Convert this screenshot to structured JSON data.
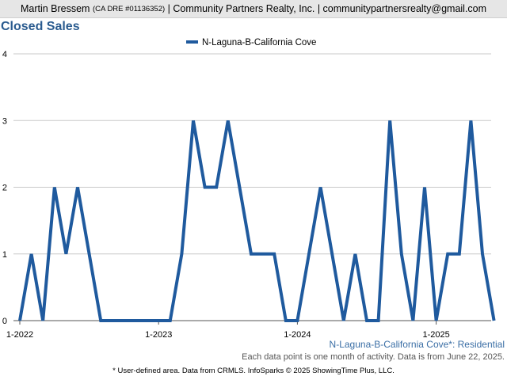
{
  "header": {
    "agent_name": "Martin Bressem",
    "license": "(CA DRE #01136352)",
    "rest": "| Community Partners Realty, Inc. | communitypartnersrealty@gmail.com"
  },
  "chart_data": {
    "type": "line",
    "title": "Closed Sales",
    "series": [
      {
        "name": "N-Laguna-B-California Cove",
        "color": "#1f5a9e",
        "values": [
          0,
          1,
          0,
          2,
          1,
          2,
          1,
          0,
          0,
          0,
          0,
          0,
          0,
          0,
          1,
          3,
          2,
          2,
          3,
          2,
          1,
          1,
          1,
          0,
          0,
          1,
          2,
          1,
          0,
          1,
          0,
          0,
          3,
          1,
          0,
          2,
          0,
          1,
          1,
          3,
          1,
          0
        ]
      }
    ],
    "x_start": "2022-01",
    "x_tick_labels": [
      "1-2022",
      "1-2023",
      "1-2024",
      "1-2025"
    ],
    "y_tick_labels": [
      "0",
      "1",
      "2",
      "3",
      "4"
    ],
    "ylim": [
      0,
      4
    ],
    "grid": true,
    "legend_position": "top-center"
  },
  "footer": {
    "area_label": "N-Laguna-B-California Cove*: Residential",
    "note": "Each data point is one month of activity. Data is from June 22, 2025.",
    "credits": "* User-defined area. Data from CRMLS. InfoSparks © 2025 ShowingTime Plus, LLC."
  }
}
